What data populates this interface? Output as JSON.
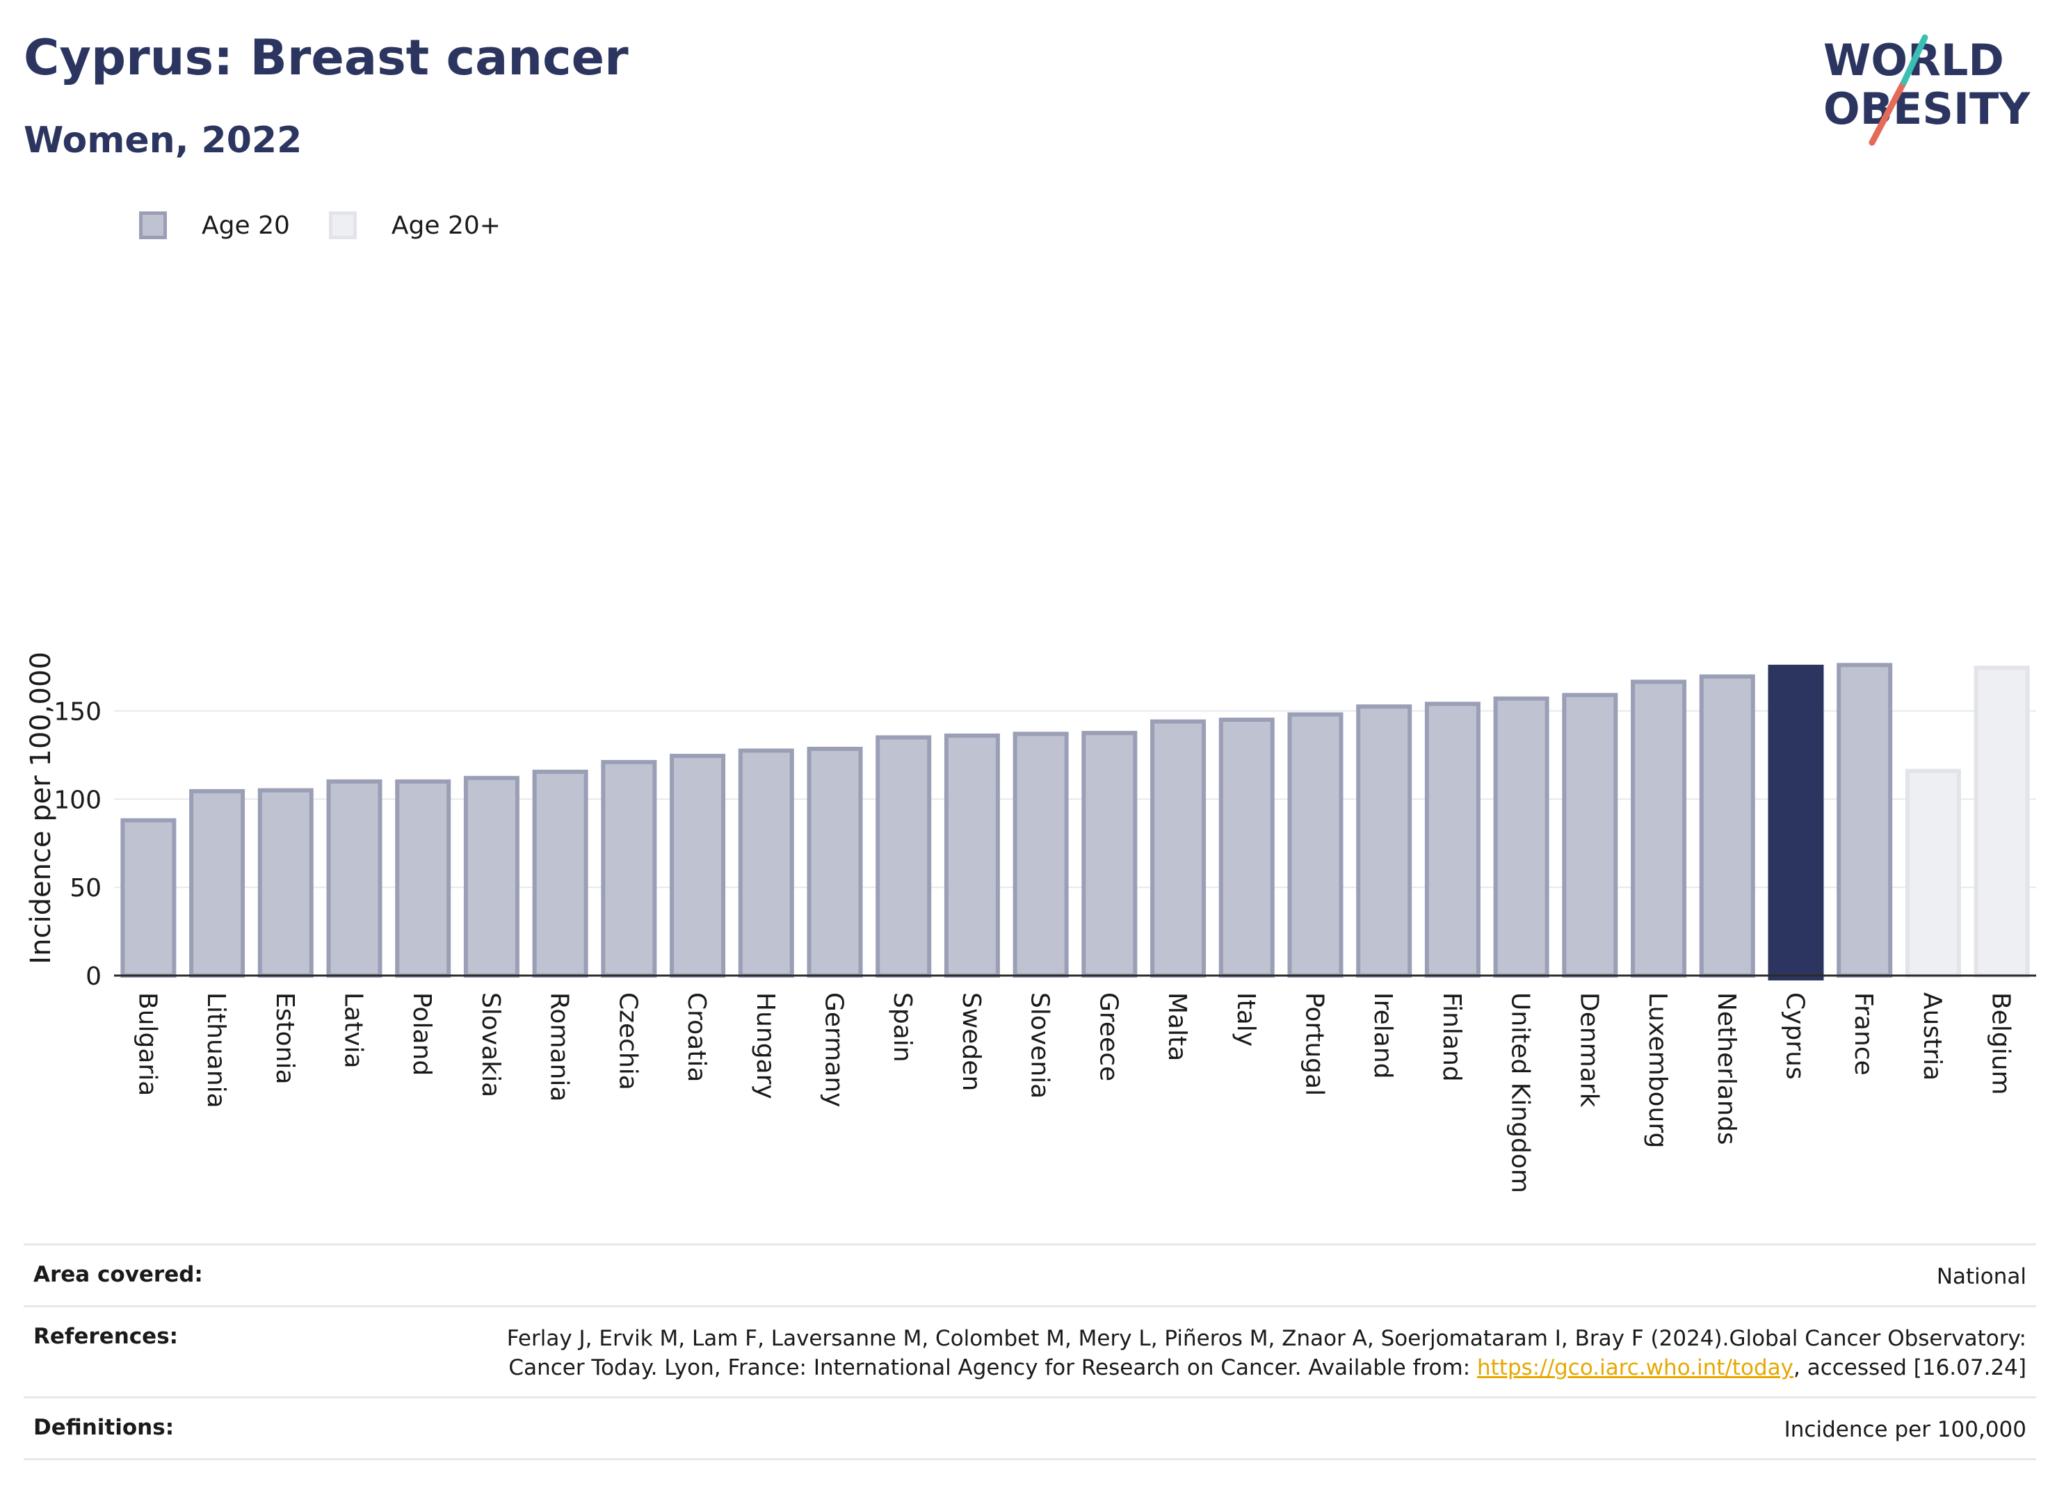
{
  "header": {
    "title": "Cyprus: Breast cancer",
    "subtitle": "Women, 2022",
    "logo_line1": "WORLD",
    "logo_line2": "OBESITY"
  },
  "legend": [
    {
      "label": "Age 20"
    },
    {
      "label": "Age 20+"
    }
  ],
  "chart_data": {
    "type": "bar",
    "ylabel": "Incidence per 100,000",
    "ylim": [
      0,
      190
    ],
    "yticks": [
      0,
      50,
      100,
      150
    ],
    "grid": true,
    "legend_position": "top-left",
    "highlight": "Cyprus",
    "categories": [
      "Bulgaria",
      "Lithuania",
      "Estonia",
      "Latvia",
      "Poland",
      "Slovakia",
      "Romania",
      "Czechia",
      "Croatia",
      "Hungary",
      "Germany",
      "Spain",
      "Sweden",
      "Slovenia",
      "Greece",
      "Malta",
      "Italy",
      "Portugal",
      "Ireland",
      "Finland",
      "United Kingdom",
      "Denmark",
      "Luxembourg",
      "Netherlands",
      "Cyprus",
      "France",
      "Austria",
      "Belgium"
    ],
    "values": [
      88,
      104.5,
      105,
      110,
      110,
      112,
      115.5,
      121,
      124.5,
      127.5,
      128.5,
      135,
      136,
      137,
      137.5,
      144,
      145,
      148,
      152.5,
      154,
      157,
      159,
      166.5,
      169.5,
      175,
      176,
      116,
      174.5
    ],
    "series_of": [
      "Age 20",
      "Age 20",
      "Age 20",
      "Age 20",
      "Age 20",
      "Age 20",
      "Age 20",
      "Age 20",
      "Age 20",
      "Age 20",
      "Age 20",
      "Age 20",
      "Age 20",
      "Age 20",
      "Age 20",
      "Age 20",
      "Age 20",
      "Age 20",
      "Age 20",
      "Age 20",
      "Age 20",
      "Age 20",
      "Age 20",
      "Age 20",
      "Age 20",
      "Age 20",
      "Age 20+",
      "Age 20+"
    ],
    "colors": {
      "age20_fill": "#bfc2d0",
      "age20_border": "#9a9fb6",
      "age20plus_fill": "#eeeff3",
      "age20plus_border": "#e3e4ea",
      "highlight": "#2b355f"
    }
  },
  "info": {
    "area_label": "Area covered:",
    "area_value": "National",
    "references_label": "References:",
    "references_text": "Ferlay J, Ervik M, Lam F, Laversanne M, Colombet M, Mery L, Piñeros M, Znaor A, Soerjomataram I, Bray F (2024).Global Cancer Observatory: Cancer Today. Lyon, France: International Agency for Research on Cancer. Available from: ",
    "references_link": "https://gco.iarc.who.int/today",
    "references_tail": ", accessed [16.07.24]",
    "definitions_label": "Definitions:",
    "definitions_value": "Incidence per 100,000"
  }
}
